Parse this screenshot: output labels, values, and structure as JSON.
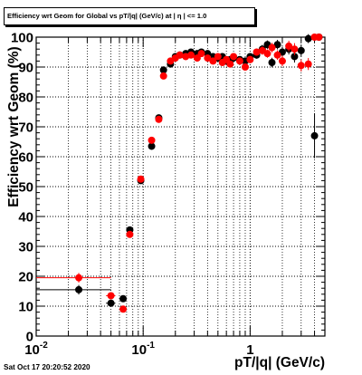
{
  "page": {
    "timestamp": "Sat Oct 17 20:20:52 2020"
  },
  "chart_data": {
    "type": "scatter",
    "title": "Efficiency wrt Geom for Global vs pT/|q| (GeV/c) at | η | <= 1.0",
    "xlabel": "pT/|q| (GeV/c)",
    "ylabel": "Efficiency wrt Geom (%)",
    "x_scale": "log",
    "xlim": [
      0.01,
      5.0
    ],
    "ylim": [
      0,
      100
    ],
    "grid": true,
    "x_tick_labels": [
      {
        "value": 0.01,
        "label": "10",
        "exponent": "-2"
      },
      {
        "value": 0.1,
        "label": "10",
        "exponent": "-1"
      },
      {
        "value": 1,
        "label": "1",
        "exponent": ""
      }
    ],
    "y_ticks": [
      0,
      10,
      20,
      30,
      40,
      50,
      60,
      70,
      80,
      90,
      100
    ],
    "series": [
      {
        "color": "#000000",
        "points": [
          {
            "x": 0.025,
            "y": 15.5,
            "xerr": [
              0.0,
              0.05
            ],
            "yerr": 1.6
          },
          {
            "x": 0.05,
            "y": 11.0,
            "xerr": [
              0.045,
              0.055
            ],
            "yerr": 1.0
          },
          {
            "x": 0.065,
            "y": 12.5,
            "xerr": [
              0.06,
              0.07
            ],
            "yerr": 1.0
          },
          {
            "x": 0.075,
            "y": 35.5,
            "xerr": [
              0.07,
              0.08
            ],
            "yerr": 1.0
          },
          {
            "x": 0.095,
            "y": 52.0,
            "xerr": [
              0.09,
              0.1
            ],
            "yerr": 1.0
          },
          {
            "x": 0.12,
            "y": 63.5,
            "xerr": [
              0.115,
              0.125
            ],
            "yerr": 1.0
          },
          {
            "x": 0.14,
            "y": 73.0,
            "xerr": [
              0.135,
              0.145
            ],
            "yerr": 1.0
          },
          {
            "x": 0.155,
            "y": 89.0,
            "xerr": [
              0.15,
              0.16
            ],
            "yerr": 1.0
          },
          {
            "x": 0.18,
            "y": 91.0,
            "yerr": 0.8
          },
          {
            "x": 0.2,
            "y": 93.5,
            "yerr": 0.8
          },
          {
            "x": 0.22,
            "y": 94.0,
            "yerr": 0.8
          },
          {
            "x": 0.25,
            "y": 94.5,
            "yerr": 0.8
          },
          {
            "x": 0.28,
            "y": 95.0,
            "yerr": 0.8
          },
          {
            "x": 0.32,
            "y": 94.5,
            "yerr": 0.8
          },
          {
            "x": 0.35,
            "y": 95.0,
            "yerr": 0.8
          },
          {
            "x": 0.4,
            "y": 94.5,
            "yerr": 0.8
          },
          {
            "x": 0.45,
            "y": 93.5,
            "yerr": 0.8
          },
          {
            "x": 0.5,
            "y": 93.0,
            "yerr": 0.8
          },
          {
            "x": 0.55,
            "y": 93.5,
            "yerr": 0.8
          },
          {
            "x": 0.6,
            "y": 92.0,
            "yerr": 1.0
          },
          {
            "x": 0.65,
            "y": 92.5,
            "yerr": 1.0
          },
          {
            "x": 0.7,
            "y": 93.0,
            "yerr": 1.0
          },
          {
            "x": 0.8,
            "y": 92.5,
            "yerr": 1.0
          },
          {
            "x": 0.9,
            "y": 92.0,
            "yerr": 1.2
          },
          {
            "x": 1.0,
            "y": 93.5,
            "yerr": 1.2
          },
          {
            "x": 1.15,
            "y": 94.0,
            "yerr": 1.2
          },
          {
            "x": 1.3,
            "y": 96.0,
            "yerr": 1.4
          },
          {
            "x": 1.45,
            "y": 97.5,
            "yerr": 1.4
          },
          {
            "x": 1.6,
            "y": 91.5,
            "yerr": 1.6
          },
          {
            "x": 1.8,
            "y": 97.5,
            "yerr": 1.6
          },
          {
            "x": 2.0,
            "y": 95.0,
            "yerr": 1.8
          },
          {
            "x": 2.3,
            "y": 96.0,
            "yerr": 1.8
          },
          {
            "x": 2.6,
            "y": 93.5,
            "yerr": 2.0
          },
          {
            "x": 3.0,
            "y": 95.5,
            "yerr": 2.0
          },
          {
            "x": 3.5,
            "y": 99.5,
            "yerr": 1.5
          },
          {
            "x": 4.0,
            "y": 67.0,
            "yerr": 7.5
          },
          {
            "x": 4.4,
            "y": 100.0,
            "yerr": 0.5
          }
        ]
      },
      {
        "color": "#ff0000",
        "points": [
          {
            "x": 0.025,
            "y": 19.5,
            "xerr": [
              0.0,
              0.05
            ],
            "yerr": 1.6
          },
          {
            "x": 0.05,
            "y": 13.5,
            "xerr": [
              0.045,
              0.055
            ],
            "yerr": 1.0
          },
          {
            "x": 0.065,
            "y": 9.0,
            "xerr": [
              0.06,
              0.07
            ],
            "yerr": 1.0
          },
          {
            "x": 0.075,
            "y": 34.0,
            "xerr": [
              0.07,
              0.08
            ],
            "yerr": 1.0
          },
          {
            "x": 0.095,
            "y": 52.5,
            "xerr": [
              0.09,
              0.1
            ],
            "yerr": 1.0
          },
          {
            "x": 0.12,
            "y": 65.5,
            "xerr": [
              0.115,
              0.125
            ],
            "yerr": 1.0
          },
          {
            "x": 0.14,
            "y": 72.5,
            "xerr": [
              0.135,
              0.145
            ],
            "yerr": 1.0
          },
          {
            "x": 0.155,
            "y": 87.0,
            "xerr": [
              0.15,
              0.16
            ],
            "yerr": 1.0
          },
          {
            "x": 0.18,
            "y": 92.0,
            "yerr": 0.8
          },
          {
            "x": 0.2,
            "y": 93.0,
            "yerr": 0.8
          },
          {
            "x": 0.22,
            "y": 94.0,
            "yerr": 0.8
          },
          {
            "x": 0.25,
            "y": 93.5,
            "yerr": 0.8
          },
          {
            "x": 0.28,
            "y": 94.0,
            "yerr": 0.8
          },
          {
            "x": 0.32,
            "y": 93.0,
            "yerr": 0.8
          },
          {
            "x": 0.35,
            "y": 94.5,
            "yerr": 0.8
          },
          {
            "x": 0.4,
            "y": 93.0,
            "yerr": 0.8
          },
          {
            "x": 0.45,
            "y": 92.0,
            "yerr": 0.8
          },
          {
            "x": 0.5,
            "y": 93.5,
            "yerr": 0.8
          },
          {
            "x": 0.55,
            "y": 91.5,
            "yerr": 0.8
          },
          {
            "x": 0.6,
            "y": 92.5,
            "yerr": 1.0
          },
          {
            "x": 0.65,
            "y": 91.0,
            "yerr": 1.0
          },
          {
            "x": 0.7,
            "y": 93.5,
            "yerr": 1.0
          },
          {
            "x": 0.8,
            "y": 92.0,
            "yerr": 1.0
          },
          {
            "x": 0.9,
            "y": 90.0,
            "yerr": 1.2
          },
          {
            "x": 1.0,
            "y": 92.5,
            "yerr": 1.2
          },
          {
            "x": 1.15,
            "y": 95.0,
            "yerr": 1.2
          },
          {
            "x": 1.3,
            "y": 95.5,
            "yerr": 1.4
          },
          {
            "x": 1.45,
            "y": 94.5,
            "yerr": 1.4
          },
          {
            "x": 1.6,
            "y": 96.5,
            "yerr": 1.6
          },
          {
            "x": 1.8,
            "y": 94.0,
            "yerr": 1.6
          },
          {
            "x": 2.0,
            "y": 92.0,
            "yerr": 1.8
          },
          {
            "x": 2.3,
            "y": 97.0,
            "yerr": 1.8
          },
          {
            "x": 2.6,
            "y": 96.0,
            "yerr": 2.0
          },
          {
            "x": 3.0,
            "y": 90.5,
            "yerr": 2.0
          },
          {
            "x": 3.5,
            "y": 91.0,
            "yerr": 2.0
          },
          {
            "x": 4.0,
            "y": 100.0,
            "yerr": 0.5
          },
          {
            "x": 4.4,
            "y": 100.0,
            "yerr": 0.5
          }
        ]
      }
    ]
  }
}
